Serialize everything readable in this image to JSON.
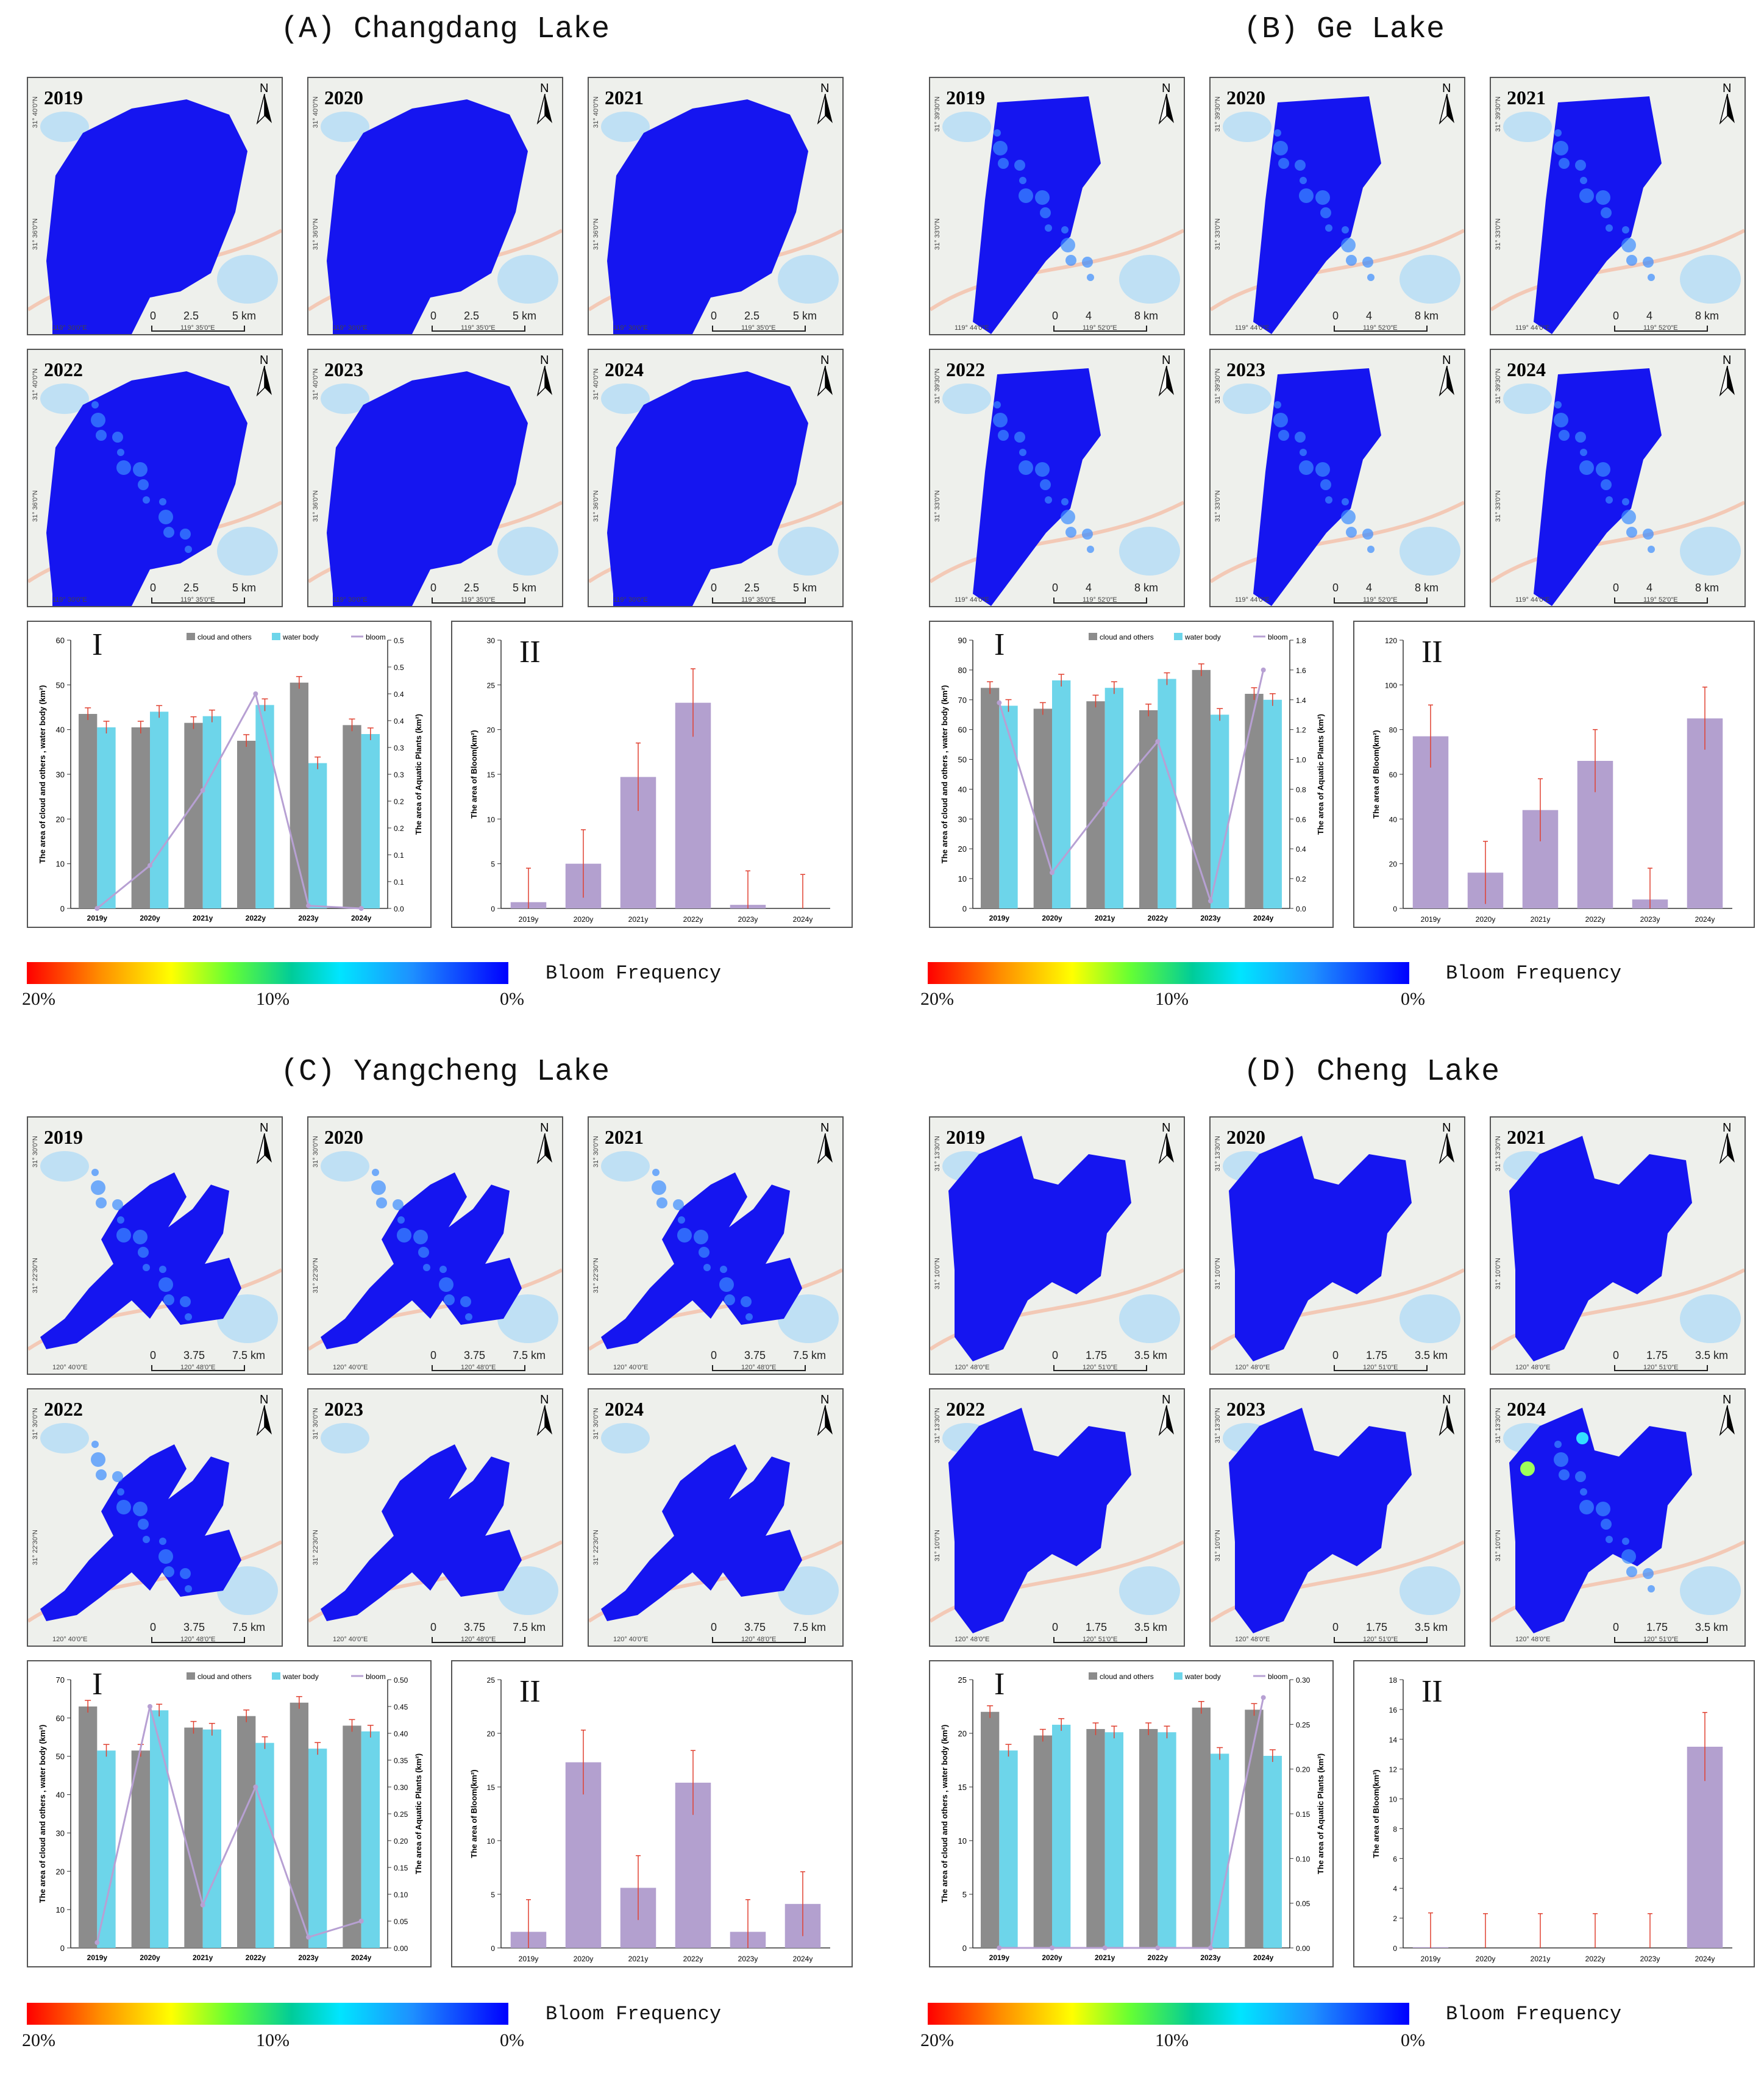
{
  "colors": {
    "cloud": "#8c8c8c",
    "water": "#6dd5ea",
    "bloom_line": "#b7a0d3",
    "bloom_bar": "#b3a0cf",
    "error": "#e04030",
    "lake_blue": "#1515f0"
  },
  "legend": {
    "title": "Bloom Frequency",
    "ticks": [
      "20%",
      "10%",
      "0%"
    ]
  },
  "series_names": {
    "cloud": "cloud and others",
    "water": "water body",
    "bloom": "bloom"
  },
  "panels": [
    {
      "title": "(A) Changdang Lake",
      "years": [
        "2019",
        "2020",
        "2021",
        "2022",
        "2023",
        "2024"
      ],
      "scale": [
        "0",
        "2.5",
        "5 km"
      ],
      "lon": [
        "119° 30′0″E",
        "119° 35′0″E"
      ],
      "lat": [
        "31° 40′0″N",
        "31° 36′0″N"
      ],
      "chart1": {
        "roman": "I",
        "yleft": "The area of cloud and others , water body (km²)",
        "yright": "The area of Aquatic Plants (km²)"
      },
      "chart2": {
        "roman": "II",
        "ylabel": "The area of Bloom(km²)"
      }
    },
    {
      "title": "(B) Ge Lake",
      "years": [
        "2019",
        "2020",
        "2021",
        "2022",
        "2023",
        "2024"
      ],
      "scale": [
        "0",
        "4",
        "8 km"
      ],
      "lon": [
        "119° 44′0″E",
        "119° 52′0″E"
      ],
      "lat": [
        "31° 39′30″N",
        "31° 33′0″N"
      ],
      "chart1": {
        "roman": "I",
        "yleft": "The area of cloud and others , water body (km²)",
        "yright": "The area of Aquatic Plants (km²)"
      },
      "chart2": {
        "roman": "II",
        "ylabel": "The area of Bloom(km²)"
      }
    },
    {
      "title": "(C) Yangcheng Lake",
      "years": [
        "2019",
        "2020",
        "2021",
        "2022",
        "2023",
        "2024"
      ],
      "scale": [
        "0",
        "3.75",
        "7.5 km"
      ],
      "lon": [
        "120° 40′0″E",
        "120° 48′0″E"
      ],
      "lat": [
        "31° 30′0″N",
        "31° 22′30″N"
      ],
      "chart1": {
        "roman": "I",
        "yleft": "The area of cloud and others , water body (km²)",
        "yright": "The area of Aquatic Plants (km²)"
      },
      "chart2": {
        "roman": "II",
        "ylabel": "The area of Bloom(km²)"
      }
    },
    {
      "title": "(D) Cheng Lake",
      "years": [
        "2019",
        "2020",
        "2021",
        "2022",
        "2023",
        "2024"
      ],
      "scale": [
        "0",
        "1.75",
        "3.5 km"
      ],
      "lon": [
        "120° 48′0″E",
        "120° 51′0″E"
      ],
      "lat": [
        "31° 13′30″N",
        "31° 10′0″N"
      ],
      "chart1": {
        "roman": "I",
        "yleft": "The area of cloud and others , water body (km²)",
        "yright": "The area of Aquatic Plants (km²)"
      },
      "chart2": {
        "roman": "II",
        "ylabel": "The area of Bloom(km²)"
      }
    }
  ],
  "chart_data": [
    {
      "panel": "A",
      "type": "bar",
      "categories": [
        "2019y",
        "2020y",
        "2021y",
        "2022y",
        "2023y",
        "2024y"
      ],
      "series": [
        {
          "name": "cloud and others",
          "values": [
            43.5,
            40.5,
            41.5,
            37.5,
            50.5,
            41
          ]
        },
        {
          "name": "water body",
          "values": [
            40.5,
            44,
            43,
            45.5,
            32.5,
            39
          ]
        },
        {
          "name": "bloom",
          "axis": "right",
          "values": [
            0.0,
            0.08,
            0.22,
            0.4,
            0.005,
            0.0
          ]
        }
      ],
      "ylim_left": [
        0,
        60
      ],
      "yticks_left": [
        0,
        10,
        20,
        30,
        40,
        50,
        60
      ],
      "ylim_right": [
        0,
        0.5
      ],
      "yticks_right": [
        "0.0",
        "0.1",
        "0.1",
        "0.2",
        "0.2",
        "0.3",
        "0.3",
        "0.4",
        "0.4",
        "0.5",
        "0.5"
      ],
      "bloom_area": {
        "values": [
          0.7,
          5,
          14.7,
          23,
          0.4,
          0
        ],
        "errors": [
          3.8,
          3.8,
          3.8,
          3.8,
          3.8,
          3.8
        ],
        "ylim": [
          0,
          30
        ],
        "yticks": [
          0,
          5,
          10,
          15,
          20,
          25,
          30
        ]
      }
    },
    {
      "panel": "B",
      "type": "bar",
      "categories": [
        "2019y",
        "2020y",
        "2021y",
        "2022y",
        "2023y",
        "2024y"
      ],
      "series": [
        {
          "name": "cloud and others",
          "values": [
            74,
            67,
            69.5,
            66.5,
            80,
            72
          ]
        },
        {
          "name": "water body",
          "values": [
            68,
            76.5,
            74,
            77,
            65,
            70
          ]
        },
        {
          "name": "bloom",
          "axis": "right",
          "values": [
            1.38,
            0.24,
            0.7,
            1.12,
            0.05,
            1.6
          ]
        }
      ],
      "ylim_left": [
        0,
        90
      ],
      "yticks_left": [
        0,
        10,
        20,
        30,
        40,
        50,
        60,
        70,
        80,
        90
      ],
      "ylim_right": [
        0,
        1.8
      ],
      "yticks_right": [
        "0.0",
        "0.2",
        "0.4",
        "0.6",
        "0.8",
        "1.0",
        "1.2",
        "1.4",
        "1.6",
        "1.8"
      ],
      "bloom_area": {
        "values": [
          77,
          16,
          44,
          66,
          4,
          85
        ],
        "errors": [
          14,
          14,
          14,
          14,
          14,
          14
        ],
        "ylim": [
          0,
          120
        ],
        "yticks": [
          0,
          20,
          40,
          60,
          80,
          100,
          120
        ]
      }
    },
    {
      "panel": "C",
      "type": "bar",
      "categories": [
        "2019y",
        "2020y",
        "2021y",
        "2022y",
        "2023y",
        "2024y"
      ],
      "series": [
        {
          "name": "cloud and others",
          "values": [
            63,
            51.5,
            57.5,
            60.5,
            64,
            58
          ]
        },
        {
          "name": "water body",
          "values": [
            51.5,
            62,
            57,
            53.5,
            52,
            56.5
          ]
        },
        {
          "name": "bloom",
          "axis": "right",
          "values": [
            0.01,
            0.45,
            0.08,
            0.3,
            0.02,
            0.05
          ]
        }
      ],
      "ylim_left": [
        0,
        70
      ],
      "yticks_left": [
        0,
        10,
        20,
        30,
        40,
        50,
        60,
        70
      ],
      "ylim_right": [
        0,
        0.5
      ],
      "yticks_right": [
        "0.00",
        "0.05",
        "0.10",
        "0.15",
        "0.20",
        "0.25",
        "0.30",
        "0.35",
        "0.40",
        "0.45",
        "0.50"
      ],
      "bloom_area": {
        "values": [
          1.5,
          17.3,
          5.6,
          15.4,
          1.5,
          4.1
        ],
        "errors": [
          3,
          3,
          3,
          3,
          3,
          3
        ],
        "ylim": [
          0,
          25
        ],
        "yticks": [
          0,
          5,
          10,
          15,
          20,
          25
        ]
      }
    },
    {
      "panel": "D",
      "type": "bar",
      "categories": [
        "2019y",
        "2020y",
        "2021y",
        "2022y",
        "2023y",
        "2024y"
      ],
      "series": [
        {
          "name": "cloud and others",
          "values": [
            22,
            19.8,
            20.4,
            20.4,
            22.4,
            22.2
          ]
        },
        {
          "name": "water body",
          "values": [
            18.4,
            20.8,
            20.1,
            20.1,
            18.1,
            17.9
          ]
        },
        {
          "name": "bloom",
          "axis": "right",
          "values": [
            0.0,
            0.0,
            0.0,
            0.0,
            0.0,
            0.28
          ]
        }
      ],
      "ylim_left": [
        0,
        25
      ],
      "yticks_left": [
        0,
        5,
        10,
        15,
        20,
        25
      ],
      "ylim_right": [
        0,
        0.3
      ],
      "yticks_right": [
        "0.00",
        "0.05",
        "0.10",
        "0.15",
        "0.20",
        "0.25",
        "0.30"
      ],
      "bloom_area": {
        "values": [
          0.05,
          0,
          0,
          0,
          0,
          13.5
        ],
        "errors": [
          2.3,
          2.3,
          2.3,
          2.3,
          2.3,
          2.3
        ],
        "ylim": [
          0,
          18
        ],
        "yticks": [
          0,
          2,
          4,
          6,
          8,
          10,
          12,
          14,
          16,
          18
        ]
      }
    }
  ]
}
